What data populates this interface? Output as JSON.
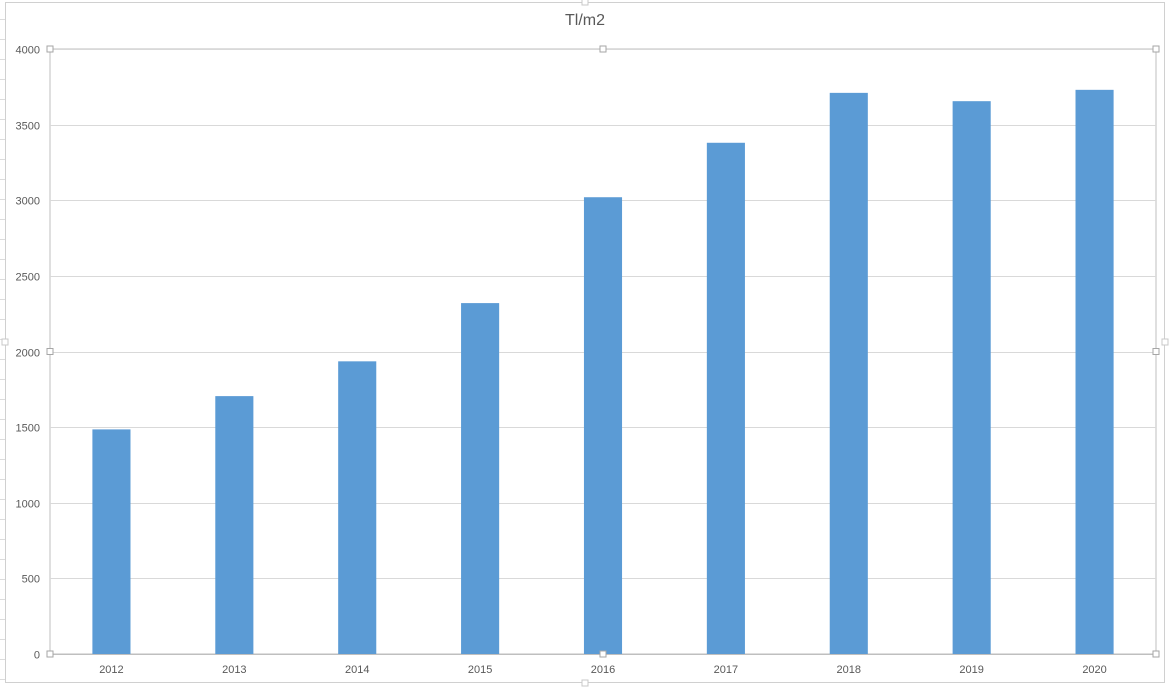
{
  "chart_data": {
    "type": "bar",
    "title": "Tl/m2",
    "categories": [
      "2012",
      "2013",
      "2014",
      "2015",
      "2016",
      "2017",
      "2018",
      "2019",
      "2020"
    ],
    "values": [
      1485,
      1705,
      1935,
      2320,
      3020,
      3380,
      3710,
      3655,
      3730
    ],
    "ylim": [
      0,
      4000
    ],
    "yticks": [
      0,
      500,
      1000,
      1500,
      2000,
      2500,
      3000,
      3500,
      4000
    ],
    "grid": true,
    "legend": "none",
    "colors": {
      "bar": "#5B9BD5",
      "grid": "#d9d9d9",
      "axis": "#595959",
      "text": "#595959",
      "handle": "#a6a6a6"
    }
  }
}
